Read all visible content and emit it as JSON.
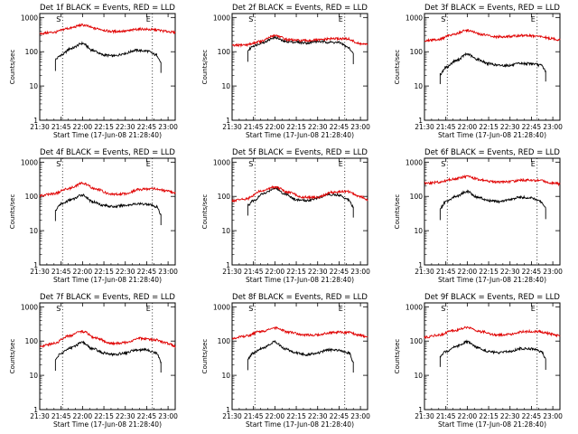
{
  "figure": {
    "x_ticks": [
      "21:30",
      "21:45",
      "22:00",
      "22:15",
      "22:30",
      "22:45",
      "23:00"
    ],
    "y_ticks": [
      "1",
      "10",
      "100",
      "1000"
    ],
    "ylabel": "Counts/sec",
    "xlabel": "Start Time (17-Jun-08 21:28:40)",
    "marker_s": "S",
    "marker_e": "E",
    "colors": {
      "events": "#000000",
      "lld": "#e00000",
      "axes": "#000000",
      "background": "#ffffff"
    }
  },
  "chart_data": [
    {
      "type": "line",
      "title": "Det 1f BLACK = Events, RED = LLD",
      "xlabel": "Start Time (17-Jun-08 21:28:40)",
      "ylabel": "Counts/sec",
      "x_range": [
        "21:30",
        "23:05"
      ],
      "ylim": [
        1,
        1300
      ],
      "y_scale": "log",
      "markers": {
        "S": "21:46",
        "E": "22:49"
      },
      "series": [
        {
          "name": "Events",
          "color": "black",
          "x": [
            "21:41",
            "21:45",
            "21:52",
            "22:00",
            "22:07",
            "22:15",
            "22:22",
            "22:30",
            "22:37",
            "22:45",
            "22:52",
            "22:55"
          ],
          "values": [
            60,
            80,
            125,
            175,
            110,
            80,
            75,
            90,
            110,
            105,
            80,
            50
          ]
        },
        {
          "name": "LLD",
          "color": "red",
          "x": [
            "21:30",
            "21:40",
            "21:50",
            "22:00",
            "22:10",
            "22:20",
            "22:30",
            "22:40",
            "22:50",
            "23:00",
            "23:05"
          ],
          "values": [
            340,
            370,
            480,
            600,
            470,
            390,
            400,
            460,
            440,
            390,
            360
          ]
        }
      ]
    },
    {
      "type": "line",
      "title": "Det 2f BLACK = Events, RED = LLD",
      "xlabel": "Start Time (17-Jun-08 21:28:40)",
      "ylabel": "Counts/sec",
      "x_range": [
        "21:30",
        "23:05"
      ],
      "ylim": [
        1,
        1300
      ],
      "y_scale": "log",
      "markers": {
        "S": "21:46",
        "E": "22:49"
      },
      "series": [
        {
          "name": "Events",
          "color": "black",
          "x": [
            "21:41",
            "21:45",
            "21:52",
            "22:00",
            "22:07",
            "22:15",
            "22:22",
            "22:30",
            "22:37",
            "22:45",
            "22:52",
            "22:55"
          ],
          "values": [
            110,
            150,
            190,
            260,
            200,
            190,
            180,
            200,
            190,
            185,
            130,
            90
          ]
        },
        {
          "name": "LLD",
          "color": "red",
          "x": [
            "21:30",
            "21:40",
            "21:50",
            "22:00",
            "22:10",
            "22:20",
            "22:30",
            "22:40",
            "22:50",
            "23:00",
            "23:05"
          ],
          "values": [
            150,
            160,
            200,
            300,
            220,
            210,
            220,
            240,
            240,
            170,
            160
          ]
        }
      ]
    },
    {
      "type": "line",
      "title": "Det 3f BLACK = Events, RED = LLD",
      "xlabel": "Start Time (17-Jun-08 21:28:40)",
      "ylabel": "Counts/sec",
      "x_range": [
        "21:30",
        "23:05"
      ],
      "ylim": [
        1,
        1300
      ],
      "y_scale": "log",
      "markers": {
        "S": "21:46",
        "E": "22:49"
      },
      "series": [
        {
          "name": "Events",
          "color": "black",
          "x": [
            "21:41",
            "21:45",
            "21:52",
            "22:00",
            "22:07",
            "22:15",
            "22:22",
            "22:30",
            "22:37",
            "22:45",
            "22:52",
            "22:55"
          ],
          "values": [
            22,
            35,
            55,
            85,
            60,
            45,
            40,
            40,
            45,
            45,
            40,
            28
          ]
        },
        {
          "name": "LLD",
          "color": "red",
          "x": [
            "21:30",
            "21:40",
            "21:50",
            "22:00",
            "22:10",
            "22:20",
            "22:30",
            "22:40",
            "22:50",
            "23:00",
            "23:05"
          ],
          "values": [
            210,
            230,
            320,
            420,
            320,
            270,
            280,
            300,
            280,
            240,
            220
          ]
        }
      ]
    },
    {
      "type": "line",
      "title": "Det 4f BLACK = Events, RED = LLD",
      "xlabel": "Start Time (17-Jun-08 21:28:40)",
      "ylabel": "Counts/sec",
      "x_range": [
        "21:30",
        "23:05"
      ],
      "ylim": [
        1,
        1300
      ],
      "y_scale": "log",
      "markers": {
        "S": "21:46",
        "E": "22:49"
      },
      "series": [
        {
          "name": "Events",
          "color": "black",
          "x": [
            "21:41",
            "21:45",
            "21:52",
            "22:00",
            "22:07",
            "22:15",
            "22:22",
            "22:30",
            "22:37",
            "22:45",
            "22:52",
            "22:55"
          ],
          "values": [
            40,
            60,
            80,
            110,
            70,
            55,
            50,
            55,
            60,
            60,
            50,
            30
          ]
        },
        {
          "name": "LLD",
          "color": "red",
          "x": [
            "21:30",
            "21:40",
            "21:50",
            "22:00",
            "22:10",
            "22:20",
            "22:30",
            "22:40",
            "22:50",
            "23:00",
            "23:05"
          ],
          "values": [
            105,
            120,
            170,
            240,
            160,
            115,
            120,
            160,
            170,
            140,
            120
          ]
        }
      ]
    },
    {
      "type": "line",
      "title": "Det 5f BLACK = Events, RED = LLD",
      "xlabel": "Start Time (17-Jun-08 21:28:40)",
      "ylabel": "Counts/sec",
      "x_range": [
        "21:30",
        "23:05"
      ],
      "ylim": [
        1,
        1300
      ],
      "y_scale": "log",
      "markers": {
        "S": "21:46",
        "E": "22:49"
      },
      "series": [
        {
          "name": "Events",
          "color": "black",
          "x": [
            "21:41",
            "21:45",
            "21:52",
            "22:00",
            "22:07",
            "22:15",
            "22:22",
            "22:30",
            "22:37",
            "22:45",
            "22:52",
            "22:55"
          ],
          "values": [
            55,
            75,
            120,
            175,
            120,
            80,
            75,
            90,
            115,
            110,
            80,
            50
          ]
        },
        {
          "name": "LLD",
          "color": "red",
          "x": [
            "21:30",
            "21:40",
            "21:50",
            "22:00",
            "22:10",
            "22:20",
            "22:30",
            "22:40",
            "22:50",
            "23:00",
            "23:05"
          ],
          "values": [
            75,
            85,
            140,
            190,
            130,
            95,
            95,
            130,
            140,
            100,
            80
          ]
        }
      ]
    },
    {
      "type": "line",
      "title": "Det 6f BLACK = Events, RED = LLD",
      "xlabel": "Start Time (17-Jun-08 21:28:40)",
      "ylabel": "Counts/sec",
      "x_range": [
        "21:30",
        "23:05"
      ],
      "ylim": [
        1,
        1300
      ],
      "y_scale": "log",
      "markers": {
        "S": "21:46",
        "E": "22:49"
      },
      "series": [
        {
          "name": "Events",
          "color": "black",
          "x": [
            "21:41",
            "21:45",
            "21:52",
            "22:00",
            "22:07",
            "22:15",
            "22:22",
            "22:30",
            "22:37",
            "22:45",
            "22:52",
            "22:55"
          ],
          "values": [
            45,
            70,
            100,
            140,
            95,
            75,
            70,
            80,
            95,
            90,
            70,
            45
          ]
        },
        {
          "name": "LLD",
          "color": "red",
          "x": [
            "21:30",
            "21:40",
            "21:50",
            "22:00",
            "22:10",
            "22:20",
            "22:30",
            "22:40",
            "22:50",
            "23:00",
            "23:05"
          ],
          "values": [
            240,
            260,
            320,
            380,
            300,
            260,
            270,
            300,
            290,
            250,
            230
          ]
        }
      ]
    },
    {
      "type": "line",
      "title": "Det 7f BLACK = Events, RED = LLD",
      "xlabel": "Start Time (17-Jun-08 21:28:40)",
      "ylabel": "Counts/sec",
      "x_range": [
        "21:30",
        "23:05"
      ],
      "ylim": [
        1,
        1300
      ],
      "y_scale": "log",
      "markers": {
        "S": "21:46",
        "E": "22:49"
      },
      "series": [
        {
          "name": "Events",
          "color": "black",
          "x": [
            "21:41",
            "21:45",
            "21:52",
            "22:00",
            "22:07",
            "22:15",
            "22:22",
            "22:30",
            "22:37",
            "22:45",
            "22:52",
            "22:55"
          ],
          "values": [
            30,
            45,
            65,
            90,
            60,
            45,
            40,
            45,
            55,
            55,
            45,
            25
          ]
        },
        {
          "name": "LLD",
          "color": "red",
          "x": [
            "21:30",
            "21:40",
            "21:50",
            "22:00",
            "22:10",
            "22:20",
            "22:30",
            "22:40",
            "22:50",
            "23:00",
            "23:05"
          ],
          "values": [
            70,
            85,
            140,
            190,
            120,
            85,
            90,
            120,
            110,
            85,
            70
          ]
        }
      ]
    },
    {
      "type": "line",
      "title": "Det 8f BLACK = Events, RED = LLD",
      "xlabel": "Start Time (17-Jun-08 21:28:40)",
      "ylabel": "Counts/sec",
      "x_range": [
        "21:30",
        "23:05"
      ],
      "ylim": [
        1,
        1300
      ],
      "y_scale": "log",
      "markers": {
        "S": "21:46",
        "E": "22:49"
      },
      "series": [
        {
          "name": "Events",
          "color": "black",
          "x": [
            "21:41",
            "21:45",
            "21:52",
            "22:00",
            "22:07",
            "22:15",
            "22:22",
            "22:30",
            "22:37",
            "22:45",
            "22:52",
            "22:55"
          ],
          "values": [
            30,
            45,
            65,
            95,
            60,
            45,
            40,
            45,
            55,
            55,
            45,
            25
          ]
        },
        {
          "name": "LLD",
          "color": "red",
          "x": [
            "21:30",
            "21:40",
            "21:50",
            "22:00",
            "22:10",
            "22:20",
            "22:30",
            "22:40",
            "22:50",
            "23:00",
            "23:05"
          ],
          "values": [
            120,
            140,
            190,
            240,
            180,
            150,
            150,
            180,
            180,
            150,
            130
          ]
        }
      ]
    },
    {
      "type": "line",
      "title": "Det 9f BLACK = Events, RED = LLD",
      "xlabel": "Start Time (17-Jun-08 21:28:40)",
      "ylabel": "Counts/sec",
      "x_range": [
        "21:30",
        "23:05"
      ],
      "ylim": [
        1,
        1300
      ],
      "y_scale": "log",
      "markers": {
        "S": "21:46",
        "E": "22:49"
      },
      "series": [
        {
          "name": "Events",
          "color": "black",
          "x": [
            "21:41",
            "21:45",
            "21:52",
            "22:00",
            "22:07",
            "22:15",
            "22:22",
            "22:30",
            "22:37",
            "22:45",
            "22:52",
            "22:55"
          ],
          "values": [
            35,
            50,
            70,
            95,
            65,
            50,
            45,
            50,
            60,
            60,
            50,
            30
          ]
        },
        {
          "name": "LLD",
          "color": "red",
          "x": [
            "21:30",
            "21:40",
            "21:50",
            "22:00",
            "22:10",
            "22:20",
            "22:30",
            "22:40",
            "22:50",
            "23:00",
            "23:05"
          ],
          "values": [
            130,
            150,
            200,
            250,
            190,
            150,
            160,
            190,
            190,
            160,
            140
          ]
        }
      ]
    }
  ]
}
